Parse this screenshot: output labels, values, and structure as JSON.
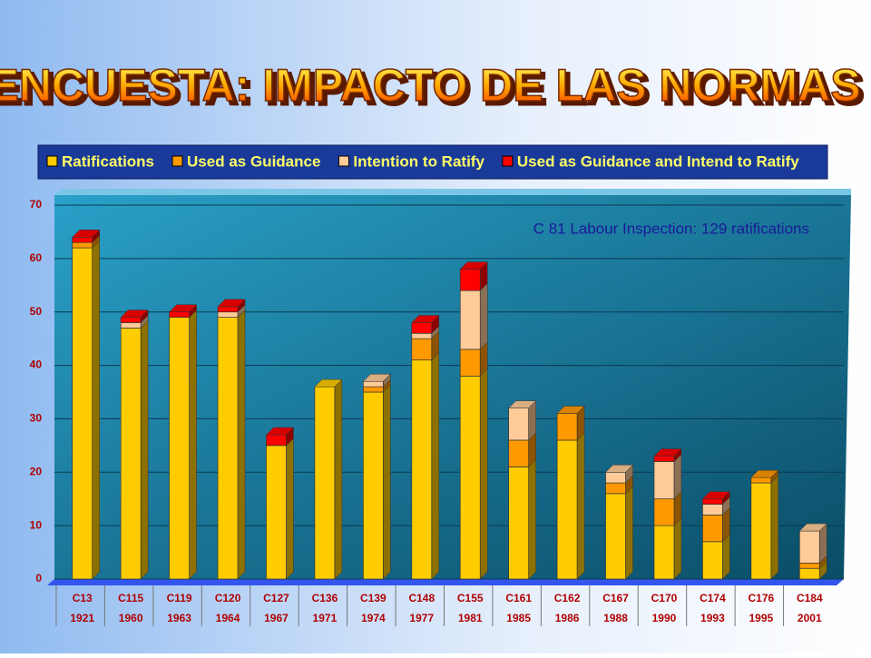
{
  "chart_data": {
    "type": "stacked-bar-3d",
    "title": "ENCUESTA: IMPACTO DE LAS NORMAS",
    "annotation": "C 81 Labour Inspection: 129 ratifications",
    "categories": [
      [
        "C13",
        "1921"
      ],
      [
        "C115",
        "1960"
      ],
      [
        "C119",
        "1963"
      ],
      [
        "C120",
        "1964"
      ],
      [
        "C127",
        "1967"
      ],
      [
        "C136",
        "1971"
      ],
      [
        "C139",
        "1974"
      ],
      [
        "C148",
        "1977"
      ],
      [
        "C155",
        "1981"
      ],
      [
        "C161",
        "1985"
      ],
      [
        "C162",
        "1986"
      ],
      [
        "C167",
        "1988"
      ],
      [
        "C170",
        "1990"
      ],
      [
        "C174",
        "1993"
      ],
      [
        "C176",
        "1995"
      ],
      [
        "C184",
        "2001"
      ]
    ],
    "series": [
      {
        "name": "Ratifications",
        "color": "#ffcc00",
        "values": [
          62,
          47,
          49,
          49,
          25,
          36,
          35,
          41,
          38,
          21,
          26,
          16,
          10,
          7,
          18,
          2
        ]
      },
      {
        "name": "Used as Guidance",
        "color": "#ff9900",
        "values": [
          1,
          0,
          0,
          0,
          0,
          0,
          1,
          4,
          5,
          5,
          5,
          2,
          5,
          5,
          1,
          1
        ]
      },
      {
        "name": "Intention to Ratify",
        "color": "#ffcc99",
        "values": [
          0,
          1,
          0,
          1,
          0,
          0,
          1,
          1,
          11,
          6,
          0,
          2,
          7,
          2,
          0,
          6
        ]
      },
      {
        "name": "Used as Guidance and Intend to Ratify",
        "color": "#ff0000",
        "values": [
          1,
          1,
          1,
          1,
          2,
          0,
          0,
          2,
          4,
          0,
          0,
          0,
          1,
          1,
          0,
          0
        ]
      }
    ],
    "ylim": [
      0,
      70
    ],
    "yticks": [
      0,
      10,
      20,
      30,
      40,
      50,
      60,
      70
    ],
    "grid": true
  }
}
